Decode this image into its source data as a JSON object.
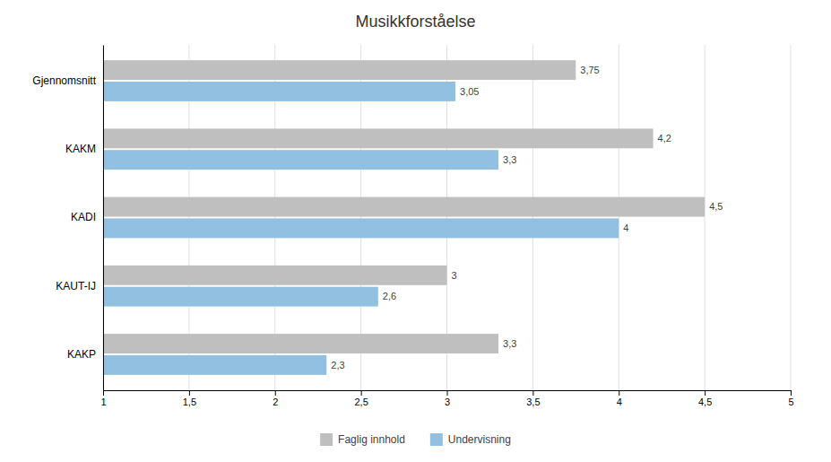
{
  "chart_data": {
    "type": "bar",
    "orientation": "horizontal",
    "title": "Musikkforståelse",
    "categories": [
      "KAKP",
      "KAUT-IJ",
      "KADI",
      "KAKM",
      "Gjennomsnitt"
    ],
    "series": [
      {
        "name": "Faglig innhold",
        "color": "#bfbfbf",
        "values": [
          3.3,
          3.0,
          4.5,
          4.2,
          3.75
        ],
        "value_labels": [
          "3,3",
          "3",
          "4,5",
          "4,2",
          "3,75"
        ]
      },
      {
        "name": "Undervisning",
        "color": "#92c0e0",
        "values": [
          2.3,
          2.6,
          4.0,
          3.3,
          3.05
        ],
        "value_labels": [
          "2,3",
          "2,6",
          "4",
          "3,3",
          "3,05"
        ]
      }
    ],
    "xlim": [
      1,
      5
    ],
    "xticks": [
      1,
      {
        "value": 1.5,
        "label": "1,5"
      },
      2,
      {
        "value": 2.5,
        "label": "2,5"
      },
      3,
      {
        "value": 3.5,
        "label": "3,5"
      },
      4,
      {
        "value": 4.5,
        "label": "4,5"
      },
      5
    ],
    "grid": true,
    "data_labels": true,
    "legend": "bottom"
  }
}
